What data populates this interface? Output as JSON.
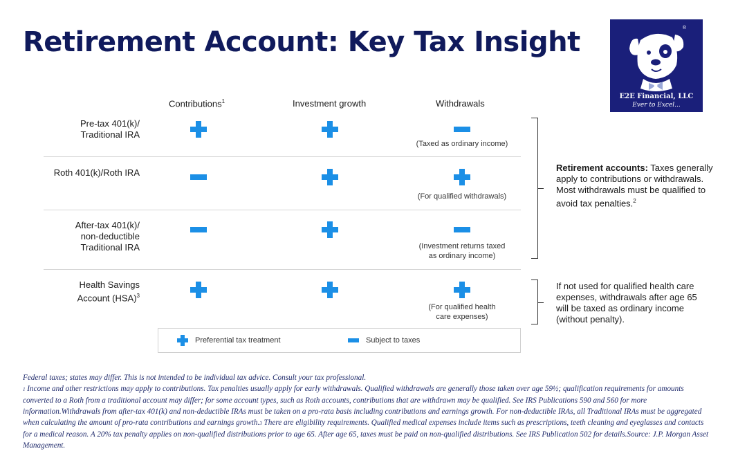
{
  "title": "Retirement Account: Key Tax Insight",
  "logo": {
    "brand": "E2E Financial, LLC",
    "tagline": "Ever to Excel...",
    "registered": "®"
  },
  "columns": {
    "contributions": "Contributions",
    "contributions_sup": "1",
    "investment_growth": "Investment growth",
    "withdrawals": "Withdrawals"
  },
  "rows": [
    {
      "label_lines": [
        "Pre-tax 401(k)/",
        "Traditional IRA"
      ],
      "contributions": "plus",
      "investment_growth": "plus",
      "withdrawals": "minus",
      "note_lines": [
        "(Taxed as ordinary income)"
      ]
    },
    {
      "label_lines": [
        "Roth 401(k)/Roth IRA"
      ],
      "contributions": "minus",
      "investment_growth": "plus",
      "withdrawals": "plus",
      "note_lines": [
        "(For qualified withdrawals)"
      ]
    },
    {
      "label_lines": [
        "After-tax 401(k)/",
        "non-deductible",
        "Traditional IRA"
      ],
      "contributions": "minus",
      "investment_growth": "plus",
      "withdrawals": "minus",
      "note_lines": [
        "(Investment returns taxed",
        "as ordinary income)"
      ]
    },
    {
      "label_lines": [
        "Health Savings",
        "Account (HSA)"
      ],
      "label_sup": "3",
      "contributions": "plus",
      "investment_growth": "plus",
      "withdrawals": "plus",
      "note_lines": [
        "(For qualified health",
        "care expenses)"
      ]
    }
  ],
  "side_notes": {
    "retirement_bold": "Retirement accounts:",
    "retirement_text": " Taxes generally apply to contributions or withdrawals. Most withdrawals must be qualified to avoid tax penalties.",
    "retirement_sup": "2",
    "hsa_text": "If not used for qualified health care expenses, withdrawals after age 65 will be taxed as ordinary income (without penalty)."
  },
  "legend": {
    "plus_label": "Preferential tax treatment",
    "minus_label": "Subject to taxes"
  },
  "footnotes": {
    "line1": "Federal taxes; states may differ. This is not intended to be individual tax advice. Consult your tax professional.",
    "fn1_num": "1",
    "fn1_text": " Income and other restrictions may apply to contributions. Tax penalties usually apply for early withdrawals. Qualified withdrawals are generally those taken over age 59½; qualification requirements for amounts converted to a Roth from a traditional account may differ; for some account types, such as Roth accounts, contributions that are withdrawn may be qualified. See IRS Publications 590 and 560 for more information.",
    "fn2_text": "Withdrawals from after-tax 401(k) and non-deductible IRAs must be taken on a pro-rata basis including contributions and earnings growth. For non-deductible IRAs, all Traditional IRAs must be aggregated when calculating the amount of pro-rata contributions and earnings growth.",
    "fn3_num": "3",
    "fn3_text": " There are eligibility requirements. Qualified medical expenses include items such as prescriptions, teeth cleaning and eyeglasses and contacts for a medical reason. A 20% tax penalty applies on non-qualified distributions prior to age 65. After age 65, taxes must be paid on non-qualified distributions. See IRS Publication 502 for details.",
    "source": "Source: J.P. Morgan Asset Management."
  },
  "colors": {
    "title": "#101a5c",
    "accent_blue": "#1b8fe6",
    "logo_bg": "#1a1f7a",
    "footnote_text": "#1f2a6b"
  },
  "icons": {
    "plus": "plus-icon",
    "minus": "minus-icon",
    "logo": "dog-mascot-icon"
  }
}
